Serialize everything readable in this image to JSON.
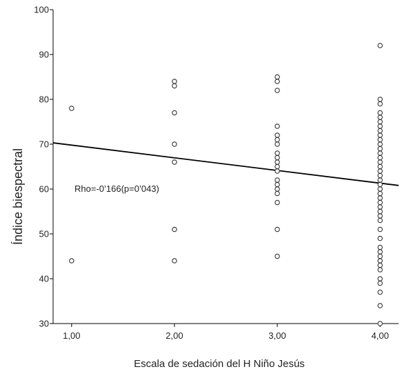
{
  "chart_data": {
    "type": "scatter",
    "title": "",
    "xlabel": "Escala de sedación del H Niño Jesús",
    "ylabel": "Índice biespectral",
    "xlim": [
      0.82,
      4.18
    ],
    "ylim": [
      30,
      100
    ],
    "x_ticks": [
      1,
      2,
      3,
      4
    ],
    "x_tick_labels": [
      "1,00",
      "2,00",
      "3,00",
      "4,00"
    ],
    "y_ticks": [
      30,
      40,
      50,
      60,
      70,
      80,
      90,
      100
    ],
    "y_tick_labels": [
      "30",
      "40",
      "50",
      "60",
      "70",
      "80",
      "90",
      "100"
    ],
    "grid": false,
    "legend": "none",
    "annotation": "Rho=-0’166(p=0’043)",
    "fit_line": {
      "x": [
        0.82,
        4.18
      ],
      "y": [
        70.3,
        60.8
      ]
    },
    "series": [
      {
        "points": [
          [
            1,
            78
          ],
          [
            1,
            44
          ],
          [
            2,
            84
          ],
          [
            2,
            83
          ],
          [
            2,
            77
          ],
          [
            2,
            70
          ],
          [
            2,
            66
          ],
          [
            2,
            51
          ],
          [
            2,
            44
          ],
          [
            3,
            85
          ],
          [
            3,
            84
          ],
          [
            3,
            82
          ],
          [
            3,
            74
          ],
          [
            3,
            72
          ],
          [
            3,
            71
          ],
          [
            3,
            70
          ],
          [
            3,
            68
          ],
          [
            3,
            67
          ],
          [
            3,
            66
          ],
          [
            3,
            65
          ],
          [
            3,
            64
          ],
          [
            3,
            62
          ],
          [
            3,
            61
          ],
          [
            3,
            60
          ],
          [
            3,
            59
          ],
          [
            3,
            57
          ],
          [
            3,
            51
          ],
          [
            3,
            45
          ],
          [
            4,
            92
          ],
          [
            4,
            80
          ],
          [
            4,
            79
          ],
          [
            4,
            77
          ],
          [
            4,
            76
          ],
          [
            4,
            75
          ],
          [
            4,
            74
          ],
          [
            4,
            73
          ],
          [
            4,
            72
          ],
          [
            4,
            71
          ],
          [
            4,
            70
          ],
          [
            4,
            69
          ],
          [
            4,
            68
          ],
          [
            4,
            67
          ],
          [
            4,
            66
          ],
          [
            4,
            65
          ],
          [
            4,
            64
          ],
          [
            4,
            63
          ],
          [
            4,
            62
          ],
          [
            4,
            61
          ],
          [
            4,
            60
          ],
          [
            4,
            59
          ],
          [
            4,
            58
          ],
          [
            4,
            57
          ],
          [
            4,
            56
          ],
          [
            4,
            55
          ],
          [
            4,
            54
          ],
          [
            4,
            53
          ],
          [
            4,
            51
          ],
          [
            4,
            49
          ],
          [
            4,
            47
          ],
          [
            4,
            46
          ],
          [
            4,
            45
          ],
          [
            4,
            44
          ],
          [
            4,
            43
          ],
          [
            4,
            42
          ],
          [
            4,
            40
          ],
          [
            4,
            39
          ],
          [
            4,
            37
          ],
          [
            4,
            34
          ],
          [
            4,
            30
          ]
        ]
      }
    ]
  }
}
